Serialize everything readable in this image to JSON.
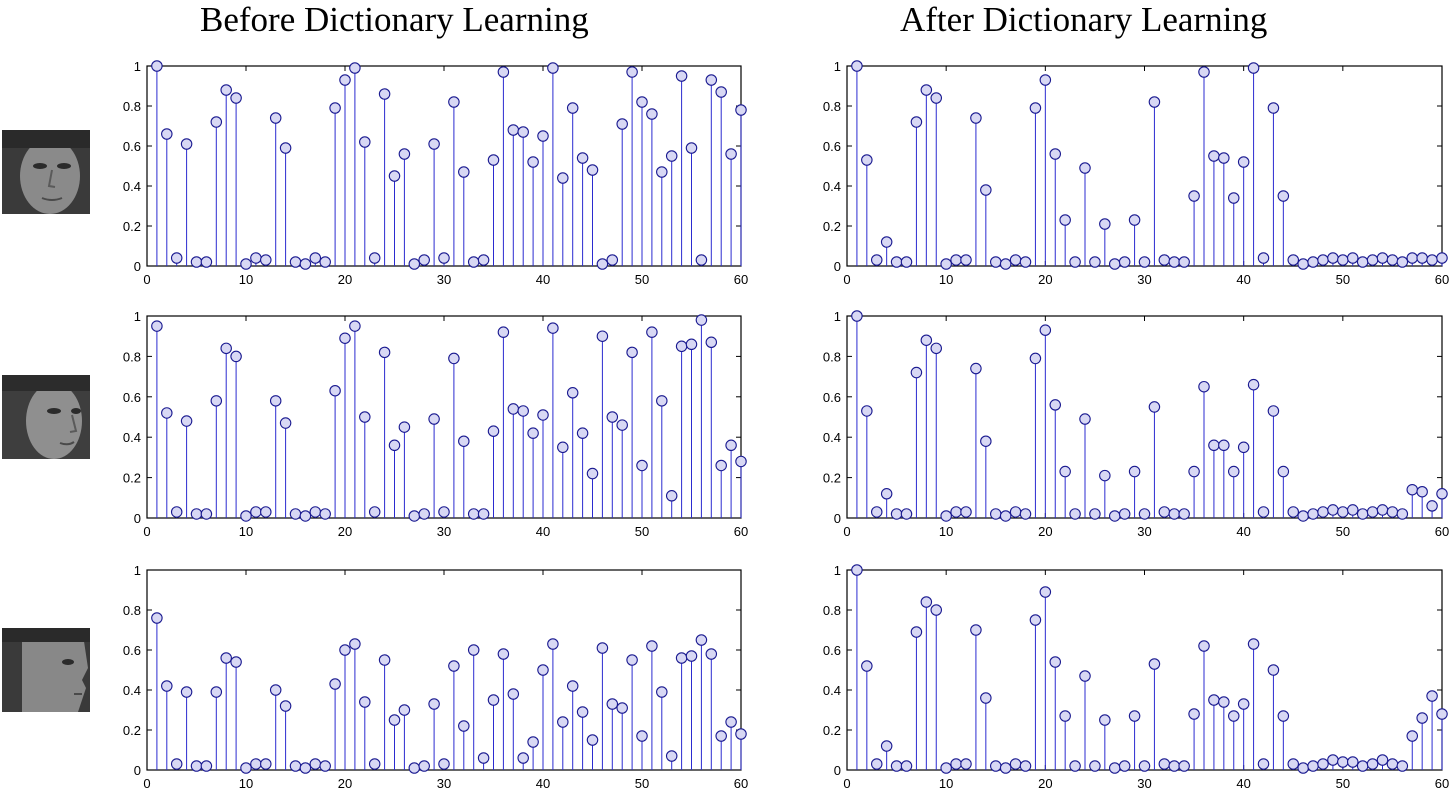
{
  "titles": {
    "left": "Before Dictionary Learning",
    "right": "After Dictionary Learning"
  },
  "colors": {
    "stem": "#2b2bd0",
    "marker_fill": "#d8d8f4",
    "marker_stroke": "#1a1a90",
    "axis": "#000000"
  },
  "chart_data": [
    {
      "type": "scatter",
      "panel": "row1-before",
      "xlim": [
        0,
        60
      ],
      "ylim": [
        0,
        1
      ],
      "xticks": [
        "0",
        "10",
        "20",
        "30",
        "40",
        "50",
        "60"
      ],
      "yticks": [
        "0",
        "0.2",
        "0.4",
        "0.6",
        "0.8",
        "1"
      ],
      "x": [
        1,
        2,
        3,
        4,
        5,
        6,
        7,
        8,
        9,
        10,
        11,
        12,
        13,
        14,
        15,
        16,
        17,
        18,
        19,
        20,
        21,
        22,
        23,
        24,
        25,
        26,
        27,
        28,
        29,
        30,
        31,
        32,
        33,
        34,
        35,
        36,
        37,
        38,
        39,
        40,
        41,
        42,
        43,
        44,
        45,
        46,
        47,
        48,
        49,
        50,
        51,
        52,
        53,
        54,
        55,
        56,
        57,
        58,
        59,
        60
      ],
      "values": [
        1.0,
        0.66,
        0.04,
        0.61,
        0.02,
        0.02,
        0.72,
        0.88,
        0.84,
        0.01,
        0.04,
        0.03,
        0.74,
        0.59,
        0.02,
        0.01,
        0.04,
        0.02,
        0.79,
        0.93,
        0.99,
        0.62,
        0.04,
        0.86,
        0.45,
        0.56,
        0.01,
        0.03,
        0.61,
        0.04,
        0.82,
        0.47,
        0.02,
        0.03,
        0.53,
        0.97,
        0.68,
        0.67,
        0.52,
        0.65,
        0.99,
        0.44,
        0.79,
        0.54,
        0.48,
        0.01,
        0.03,
        0.71,
        0.97,
        0.82,
        0.76,
        0.47,
        0.55,
        0.95,
        0.59,
        0.03,
        0.93,
        0.87,
        0.56,
        0.78
      ]
    },
    {
      "type": "scatter",
      "panel": "row1-after",
      "xlim": [
        0,
        60
      ],
      "ylim": [
        0,
        1
      ],
      "xticks": [
        "0",
        "10",
        "20",
        "30",
        "40",
        "50",
        "60"
      ],
      "yticks": [
        "0",
        "0.2",
        "0.4",
        "0.6",
        "0.8",
        "1"
      ],
      "x": [
        1,
        2,
        3,
        4,
        5,
        6,
        7,
        8,
        9,
        10,
        11,
        12,
        13,
        14,
        15,
        16,
        17,
        18,
        19,
        20,
        21,
        22,
        23,
        24,
        25,
        26,
        27,
        28,
        29,
        30,
        31,
        32,
        33,
        34,
        35,
        36,
        37,
        38,
        39,
        40,
        41,
        42,
        43,
        44,
        45,
        46,
        47,
        48,
        49,
        50,
        51,
        52,
        53,
        54,
        55,
        56,
        57,
        58,
        59,
        60
      ],
      "values": [
        1.0,
        0.53,
        0.03,
        0.12,
        0.02,
        0.02,
        0.72,
        0.88,
        0.84,
        0.01,
        0.03,
        0.03,
        0.74,
        0.38,
        0.02,
        0.01,
        0.03,
        0.02,
        0.79,
        0.93,
        0.56,
        0.23,
        0.02,
        0.49,
        0.02,
        0.21,
        0.01,
        0.02,
        0.23,
        0.02,
        0.82,
        0.03,
        0.02,
        0.02,
        0.35,
        0.97,
        0.55,
        0.54,
        0.34,
        0.52,
        0.99,
        0.04,
        0.79,
        0.35,
        0.03,
        0.01,
        0.02,
        0.03,
        0.04,
        0.03,
        0.04,
        0.02,
        0.03,
        0.04,
        0.03,
        0.02,
        0.04,
        0.04,
        0.03,
        0.04
      ]
    },
    {
      "type": "scatter",
      "panel": "row2-before",
      "xlim": [
        0,
        60
      ],
      "ylim": [
        0,
        1
      ],
      "xticks": [
        "0",
        "10",
        "20",
        "30",
        "40",
        "50",
        "60"
      ],
      "yticks": [
        "0",
        "0.2",
        "0.4",
        "0.6",
        "0.8",
        "1"
      ],
      "x": [
        1,
        2,
        3,
        4,
        5,
        6,
        7,
        8,
        9,
        10,
        11,
        12,
        13,
        14,
        15,
        16,
        17,
        18,
        19,
        20,
        21,
        22,
        23,
        24,
        25,
        26,
        27,
        28,
        29,
        30,
        31,
        32,
        33,
        34,
        35,
        36,
        37,
        38,
        39,
        40,
        41,
        42,
        43,
        44,
        45,
        46,
        47,
        48,
        49,
        50,
        51,
        52,
        53,
        54,
        55,
        56,
        57,
        58,
        59,
        60
      ],
      "values": [
        0.95,
        0.52,
        0.03,
        0.48,
        0.02,
        0.02,
        0.58,
        0.84,
        0.8,
        0.01,
        0.03,
        0.03,
        0.58,
        0.47,
        0.02,
        0.01,
        0.03,
        0.02,
        0.63,
        0.89,
        0.95,
        0.5,
        0.03,
        0.82,
        0.36,
        0.45,
        0.01,
        0.02,
        0.49,
        0.03,
        0.79,
        0.38,
        0.02,
        0.02,
        0.43,
        0.92,
        0.54,
        0.53,
        0.42,
        0.51,
        0.94,
        0.35,
        0.62,
        0.42,
        0.22,
        0.9,
        0.5,
        0.46,
        0.82,
        0.26,
        0.92,
        0.58,
        0.11,
        0.85,
        0.86,
        0.98,
        0.87,
        0.26,
        0.36,
        0.28
      ]
    },
    {
      "type": "scatter",
      "panel": "row2-after",
      "xlim": [
        0,
        60
      ],
      "ylim": [
        0,
        1
      ],
      "xticks": [
        "0",
        "10",
        "20",
        "30",
        "40",
        "50",
        "60"
      ],
      "yticks": [
        "0",
        "0.2",
        "0.4",
        "0.6",
        "0.8",
        "1"
      ],
      "x": [
        1,
        2,
        3,
        4,
        5,
        6,
        7,
        8,
        9,
        10,
        11,
        12,
        13,
        14,
        15,
        16,
        17,
        18,
        19,
        20,
        21,
        22,
        23,
        24,
        25,
        26,
        27,
        28,
        29,
        30,
        31,
        32,
        33,
        34,
        35,
        36,
        37,
        38,
        39,
        40,
        41,
        42,
        43,
        44,
        45,
        46,
        47,
        48,
        49,
        50,
        51,
        52,
        53,
        54,
        55,
        56,
        57,
        58,
        59,
        60
      ],
      "values": [
        1.0,
        0.53,
        0.03,
        0.12,
        0.02,
        0.02,
        0.72,
        0.88,
        0.84,
        0.01,
        0.03,
        0.03,
        0.74,
        0.38,
        0.02,
        0.01,
        0.03,
        0.02,
        0.79,
        0.93,
        0.56,
        0.23,
        0.02,
        0.49,
        0.02,
        0.21,
        0.01,
        0.02,
        0.23,
        0.02,
        0.55,
        0.03,
        0.02,
        0.02,
        0.23,
        0.65,
        0.36,
        0.36,
        0.23,
        0.35,
        0.66,
        0.03,
        0.53,
        0.23,
        0.03,
        0.01,
        0.02,
        0.03,
        0.04,
        0.03,
        0.04,
        0.02,
        0.03,
        0.04,
        0.03,
        0.02,
        0.14,
        0.13,
        0.06,
        0.12
      ]
    },
    {
      "type": "scatter",
      "panel": "row3-before",
      "xlim": [
        0,
        60
      ],
      "ylim": [
        0,
        1
      ],
      "xticks": [
        "0",
        "10",
        "20",
        "30",
        "40",
        "50",
        "60"
      ],
      "yticks": [
        "0",
        "0.2",
        "0.4",
        "0.6",
        "0.8",
        "1"
      ],
      "x": [
        1,
        2,
        3,
        4,
        5,
        6,
        7,
        8,
        9,
        10,
        11,
        12,
        13,
        14,
        15,
        16,
        17,
        18,
        19,
        20,
        21,
        22,
        23,
        24,
        25,
        26,
        27,
        28,
        29,
        30,
        31,
        32,
        33,
        34,
        35,
        36,
        37,
        38,
        39,
        40,
        41,
        42,
        43,
        44,
        45,
        46,
        47,
        48,
        49,
        50,
        51,
        52,
        53,
        54,
        55,
        56,
        57,
        58,
        59,
        60
      ],
      "values": [
        0.76,
        0.42,
        0.03,
        0.39,
        0.02,
        0.02,
        0.39,
        0.56,
        0.54,
        0.01,
        0.03,
        0.03,
        0.4,
        0.32,
        0.02,
        0.01,
        0.03,
        0.02,
        0.43,
        0.6,
        0.63,
        0.34,
        0.03,
        0.55,
        0.25,
        0.3,
        0.01,
        0.02,
        0.33,
        0.03,
        0.52,
        0.22,
        0.6,
        0.06,
        0.35,
        0.58,
        0.38,
        0.06,
        0.14,
        0.5,
        0.63,
        0.24,
        0.42,
        0.29,
        0.15,
        0.61,
        0.33,
        0.31,
        0.55,
        0.17,
        0.62,
        0.39,
        0.07,
        0.56,
        0.57,
        0.65,
        0.58,
        0.17,
        0.24,
        0.18
      ]
    },
    {
      "type": "scatter",
      "panel": "row3-after",
      "xlim": [
        0,
        60
      ],
      "ylim": [
        0,
        1
      ],
      "xticks": [
        "0",
        "10",
        "20",
        "30",
        "40",
        "50",
        "60"
      ],
      "yticks": [
        "0",
        "0.2",
        "0.4",
        "0.6",
        "0.8",
        "1"
      ],
      "x": [
        1,
        2,
        3,
        4,
        5,
        6,
        7,
        8,
        9,
        10,
        11,
        12,
        13,
        14,
        15,
        16,
        17,
        18,
        19,
        20,
        21,
        22,
        23,
        24,
        25,
        26,
        27,
        28,
        29,
        30,
        31,
        32,
        33,
        34,
        35,
        36,
        37,
        38,
        39,
        40,
        41,
        42,
        43,
        44,
        45,
        46,
        47,
        48,
        49,
        50,
        51,
        52,
        53,
        54,
        55,
        56,
        57,
        58,
        59,
        60
      ],
      "values": [
        1.0,
        0.52,
        0.03,
        0.12,
        0.02,
        0.02,
        0.69,
        0.84,
        0.8,
        0.01,
        0.03,
        0.03,
        0.7,
        0.36,
        0.02,
        0.01,
        0.03,
        0.02,
        0.75,
        0.89,
        0.54,
        0.27,
        0.02,
        0.47,
        0.02,
        0.25,
        0.01,
        0.02,
        0.27,
        0.02,
        0.53,
        0.03,
        0.02,
        0.02,
        0.28,
        0.62,
        0.35,
        0.34,
        0.27,
        0.33,
        0.63,
        0.03,
        0.5,
        0.27,
        0.03,
        0.01,
        0.02,
        0.03,
        0.05,
        0.04,
        0.04,
        0.02,
        0.03,
        0.05,
        0.03,
        0.02,
        0.17,
        0.26,
        0.37,
        0.28
      ]
    }
  ]
}
